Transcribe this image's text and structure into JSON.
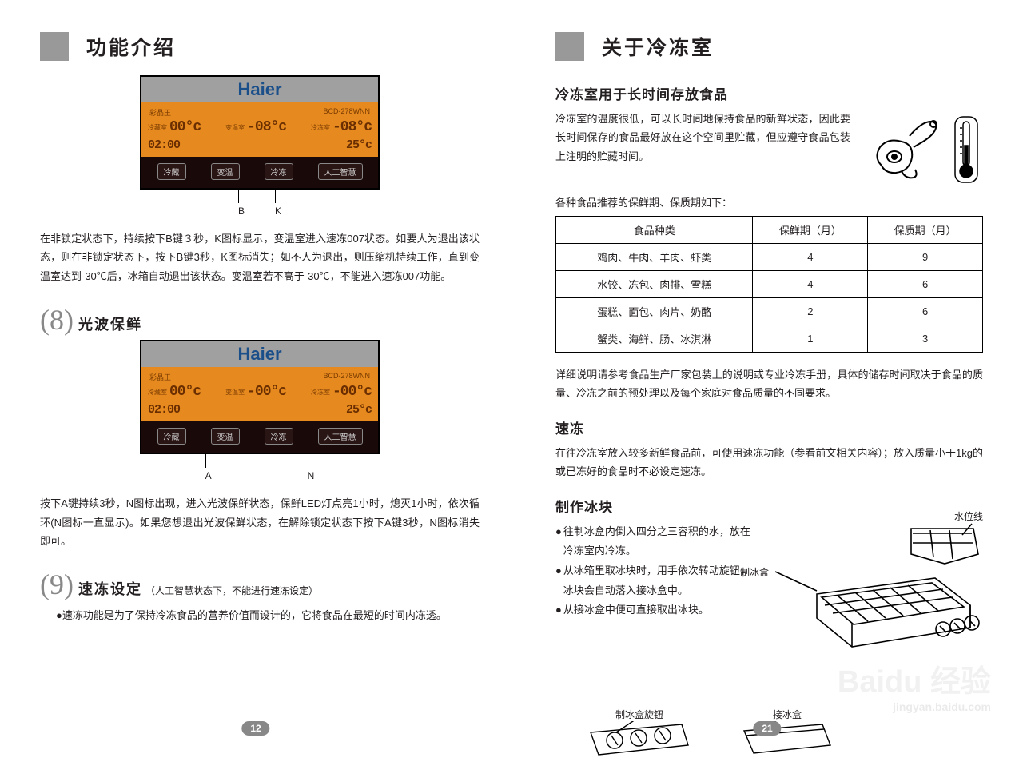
{
  "left": {
    "title": "功能介绍",
    "panel": {
      "brand": "Haier",
      "sub_left": "彩晶王",
      "sub_right": "BCD-278WNN",
      "cell1_label": "冷藏室",
      "cell1_digits": "00°c",
      "cell2_label": "变温室",
      "cell2_digits": "-08°c",
      "cell3_label": "冷冻室",
      "cell3_digits": "-08°c",
      "row2_time": "02:00",
      "row2_temp": "25°c",
      "btn1": "冷藏",
      "btn2": "变温",
      "btn3": "冷冻",
      "btn4": "人工智慧"
    },
    "panel1_label_b": "B",
    "panel1_label_k": "K",
    "para1": "在非锁定状态下，持续按下B键３秒，K图标显示，变温室进入速冻007状态。如要人为退出该状态，则在非锁定状态下，按下B键3秒，K图标消失；如不人为退出，则压缩机持续工作，直到变温室达到-30℃后，冰箱自动退出该状态。变温室若不高于-30℃，不能进入速冻007功能。",
    "sec8_num": "(8)",
    "sec8_title": "光波保鲜",
    "panel2": {
      "cell2_digits": "-00°c",
      "cell3_digits": "-00°c"
    },
    "panel2_label_a": "A",
    "panel2_label_n": "N",
    "para2": "按下A键持续3秒，N图标出现，进入光波保鲜状态，保鲜LED灯点亮1小时，熄灭1小时，依次循环(N图标一直显示)。如果您想退出光波保鲜状态，在解除锁定状态下按下A键3秒，N图标消失即可。",
    "sec9_num": "(9)",
    "sec9_title": "速冻设定",
    "sec9_note": "（人工智慧状态下，不能进行速冻设定）",
    "sec9_bullet": "●速冻功能是为了保持冷冻食品的营养价值而设计的，它将食品在最短的时间内冻透。",
    "page_num": "12"
  },
  "right": {
    "title": "关于冷冻室",
    "h1": "冷冻室用于长时间存放食品",
    "intro": "冷冻室的温度很低，可以长时间地保持食品的新鲜状态，因此要长时间保存的食品最好放在这个空间里贮藏，但应遵守食品包装上注明的贮藏时间。",
    "table_intro": "各种食品推荐的保鲜期、保质期如下：",
    "table": {
      "col1": "食品种类",
      "col2": "保鲜期（月）",
      "col3": "保质期（月）",
      "rows": [
        [
          "鸡肉、牛肉、羊肉、虾类",
          "4",
          "9"
        ],
        [
          "水饺、冻包、肉排、雪糕",
          "4",
          "6"
        ],
        [
          "蛋糕、面包、肉片、奶酪",
          "2",
          "6"
        ],
        [
          "蟹类、海鲜、肠、冰淇淋",
          "1",
          "3"
        ]
      ]
    },
    "table_note": "详细说明请参考食品生产厂家包装上的说明或专业冷冻手册，具体的储存时间取决于食品的质量、冷冻之前的预处理以及每个家庭对食品质量的不同要求。",
    "h2": "速冻",
    "quick_text": "在往冷冻室放入较多新鲜食品前，可使用速冻功能（参看前文相关内容）；放入质量小于1kg的或已冻好的食品时不必设定速冻。",
    "h3": "制作冰块",
    "ice_bullets": [
      "往制冰盒内倒入四分之三容积的水，放在冷冻室内冷冻。",
      "从冰箱里取冰块时，用手依次转动旋钮，冰块会自动落入接冰盒中。",
      "从接冰盒中便可直接取出冰块。"
    ],
    "ice_labels": {
      "water_line": "水位线",
      "ice_tray": "制冰盒",
      "knob": "制冰盒旋钮",
      "recv": "接冰盒"
    },
    "page_num": "21"
  }
}
